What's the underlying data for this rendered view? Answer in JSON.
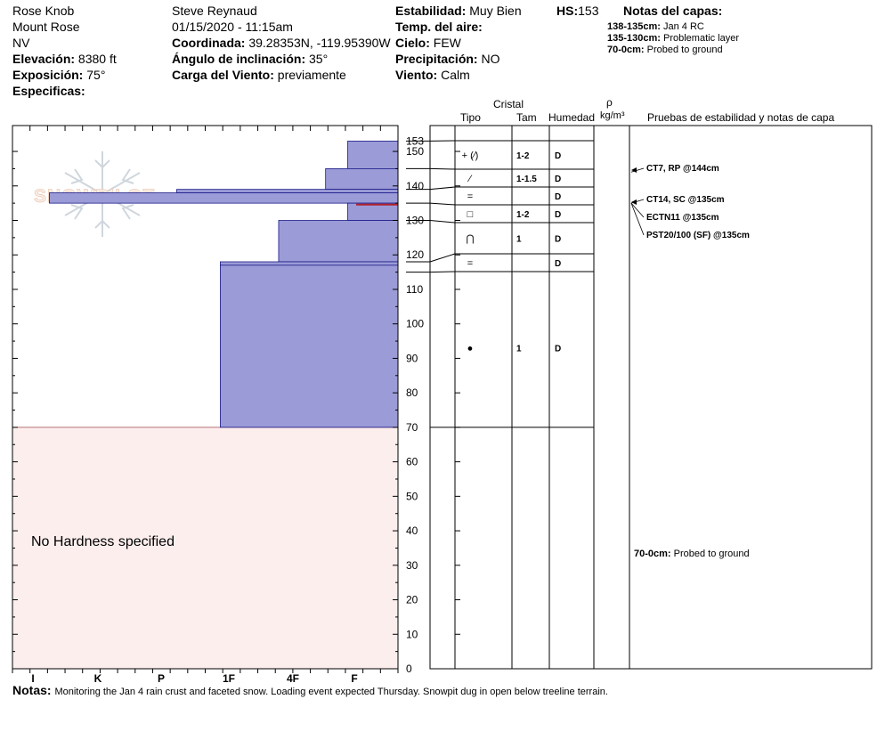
{
  "header": {
    "location": "Rose Knob",
    "area": "Mount Rose",
    "state": "NV",
    "elevation_label": "Elevación:",
    "elevation": "8380 ft",
    "aspect_label": "Exposición:",
    "aspect": "75°",
    "specifics_label": "Especificas:",
    "observer": "Steve Reynaud",
    "datetime": "01/15/2020 - 11:15am",
    "coord_label": "Coordinada:",
    "coord": "39.28353N, -119.95390W",
    "slope_label": "Ángulo de inclinación:",
    "slope": "35°",
    "wind_load_label": "Carga del Viento:",
    "wind_load": "previamente",
    "stability_label": "Estabilidad:",
    "stability": "Muy Bien",
    "air_temp_label": "Temp. del aire:",
    "sky_label": "Cielo:",
    "sky": "FEW",
    "precip_label": "Precipitación:",
    "precip": "NO",
    "wind_label": "Viento:",
    "wind": "Calm",
    "hs_label": "HS:",
    "hs": "153",
    "layer_notes_label": "Notas del capas:",
    "layer_notes": [
      {
        "range": "138-135cm:",
        "text": "Jan 4 RC"
      },
      {
        "range": "135-130cm:",
        "text": "Problematic layer"
      },
      {
        "range": "70-0cm:",
        "text": "Probed to ground"
      }
    ]
  },
  "logo_text": "SNOWPILOT",
  "columns": {
    "cristal": "Cristal",
    "tipo": "Tipo",
    "tam": "Tam",
    "humedad": "Humedad",
    "rho": "ρ",
    "density_unit": "kg/m³",
    "tests": "Pruebas de estabilidad y notas de capa"
  },
  "no_hardness_text": "No Hardness specified",
  "notes_label": "Notas:",
  "notes_text": "Monitoring the Jan 4 rain crust and faceted snow.  Loading event expected Thursday.  Snowpit dug in open below treeline terrain.",
  "chart_data": {
    "type": "bar",
    "title": "",
    "xlabel": "",
    "ylabel": "",
    "hardness_categories": [
      "I",
      "K",
      "P",
      "1F",
      "4F",
      "F"
    ],
    "ylim": [
      0,
      153
    ],
    "y_ticks": [
      0,
      10,
      20,
      30,
      40,
      50,
      60,
      70,
      80,
      90,
      100,
      110,
      120,
      130,
      140,
      150
    ],
    "y_top_label": "153",
    "hardness_layers": [
      {
        "top": 153,
        "bottom": 145,
        "hardness": 0.75
      },
      {
        "top": 145,
        "bottom": 139,
        "hardness": 1.08
      },
      {
        "top": 139,
        "bottom": 138,
        "hardness": 3.3
      },
      {
        "top": 138,
        "bottom": 135,
        "hardness": 5.2
      },
      {
        "top": 135,
        "bottom": 130,
        "hardness": 0.75
      },
      {
        "top": 130,
        "bottom": 118,
        "hardness": 1.78
      },
      {
        "top": 118,
        "bottom": 117,
        "hardness": 2.65
      },
      {
        "top": 117,
        "bottom": 70,
        "hardness": 2.65
      }
    ],
    "no_hardness_range": [
      0,
      70
    ],
    "layers": [
      {
        "top": 153,
        "bottom": 145,
        "crystal": "+ (⁄)",
        "size": "1-2",
        "moisture": "D"
      },
      {
        "top": 145,
        "bottom": 139,
        "crystal": "⁄",
        "size": "1-1.5",
        "moisture": "D"
      },
      {
        "top": 139,
        "bottom": 135,
        "crystal": "=",
        "size": "",
        "moisture": "D"
      },
      {
        "top": 135,
        "bottom": 130,
        "crystal": "□",
        "size": "1-2",
        "moisture": "D"
      },
      {
        "top": 130,
        "bottom": 118,
        "crystal": "⋂",
        "size": "1",
        "moisture": "D"
      },
      {
        "top": 118,
        "bottom": 115,
        "crystal": "=",
        "size": "",
        "moisture": "D"
      },
      {
        "top": 115,
        "bottom": 70,
        "crystal": "●",
        "size": "1",
        "moisture": "D"
      }
    ],
    "tests": [
      {
        "depth": 144,
        "label": "CT7, RP @144cm"
      },
      {
        "depth": 135,
        "label": "CT14, SC @135cm"
      },
      {
        "depth": 135,
        "label": "ECTN11 @135cm"
      },
      {
        "depth": 135,
        "label": "PST20/100 (SF) @135cm"
      }
    ],
    "layer_comments": [
      {
        "depth": 70,
        "range": "70-0cm:",
        "text": "Probed to ground"
      }
    ],
    "colors": {
      "hardness_fill": "#9b9bd7",
      "hardness_edge": "#1a1a8a",
      "no_hardness_fill": "#fdeeee",
      "crust_line": "#b0202a"
    }
  }
}
